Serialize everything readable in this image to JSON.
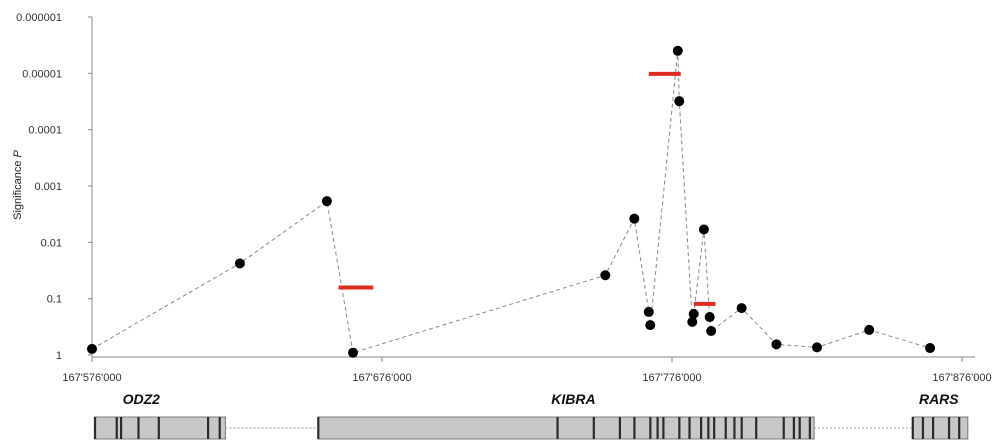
{
  "chart_data": {
    "type": "scatter",
    "title": "",
    "ylabel": "Significance",
    "ylabel_italic": "P",
    "y_scale": "log",
    "y_inverted": true,
    "yticks": [
      "1",
      "0.1",
      "0.01",
      "0.001",
      "0.0001",
      "0.00001",
      "0.000001"
    ],
    "ylim": [
      1,
      1e-06
    ],
    "xticks": [
      "167'576'000",
      "167'676'000",
      "167'776'000",
      "167'876'000"
    ],
    "xlim": [
      167576000,
      167876000
    ],
    "grid": false,
    "series": [
      {
        "style": "black dots joined by dashed grey line",
        "color": "#000000",
        "points": [
          [
            167576000,
            0.78
          ],
          [
            167627000,
            0.0237
          ],
          [
            167657000,
            0.00186
          ],
          [
            167666000,
            0.91
          ],
          [
            167753000,
            0.0384
          ],
          [
            167763000,
            0.0038
          ],
          [
            167768000,
            0.172
          ],
          [
            167768500,
            0.295
          ],
          [
            167778000,
            3.98e-06
          ],
          [
            167778500,
            3.12e-05
          ],
          [
            167783000,
            0.258
          ],
          [
            167783500,
            0.186
          ],
          [
            167787000,
            0.00591
          ],
          [
            167789000,
            0.212
          ],
          [
            167789500,
            0.375
          ],
          [
            167800000,
            0.147
          ],
          [
            167812000,
            0.647
          ],
          [
            167826000,
            0.733
          ],
          [
            167844000,
            0.359
          ],
          [
            167865000,
            0.753
          ]
        ]
      },
      {
        "style": "red horizontal bars",
        "color": "#e02b20",
        "segments": [
          {
            "x1": 167661000,
            "x2": 167673000,
            "y": 0.0632
          },
          {
            "x1": 167768000,
            "x2": 167779000,
            "y": 1.02e-05
          },
          {
            "x1": 167783500,
            "x2": 167791000,
            "y": 0.124
          }
        ]
      }
    ],
    "genes": [
      {
        "name": "ODZ2",
        "label_at": 167593000
      },
      {
        "name": "KIBRA",
        "label_at": 167742000
      },
      {
        "name": "RARS",
        "label_at": 167868000
      }
    ],
    "gene_track": {
      "segments": [
        [
          167577000,
          167622000
        ],
        [
          167654000,
          167825000
        ],
        [
          167859000,
          167878000
        ]
      ],
      "exon_lines": [
        167577000,
        167584500,
        167586000,
        167592000,
        167599000,
        167616000,
        167620000,
        167654000,
        167736500,
        167749000,
        167758000,
        167763000,
        167768500,
        167771000,
        167773000,
        167778500,
        167782000,
        167786000,
        167788500,
        167790500,
        167794500,
        167797500,
        167800000,
        167805000,
        167814500,
        167818000,
        167820000,
        167823500,
        167859000,
        167862500,
        167866000,
        167871500,
        167875000
      ]
    }
  }
}
